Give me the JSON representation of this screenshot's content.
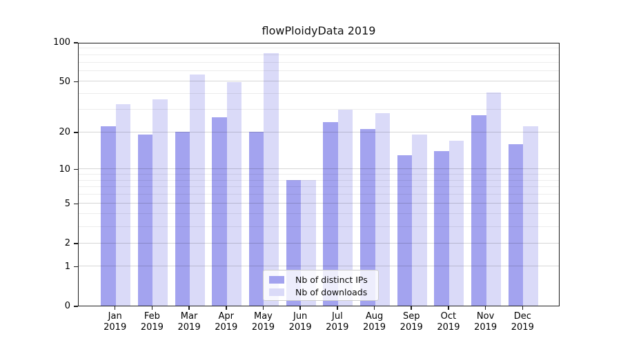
{
  "title": "flowPloidyData 2019",
  "chart_data": {
    "type": "bar",
    "title": "flowPloidyData 2019",
    "categories": [
      "Jan",
      "Feb",
      "Mar",
      "Apr",
      "May",
      "Jun",
      "Jul",
      "Aug",
      "Sep",
      "Oct",
      "Nov",
      "Dec"
    ],
    "category_year": "2019",
    "series": [
      {
        "name": "Nb of distinct IPs",
        "color": "#a3a3ef",
        "values": [
          22,
          19,
          20,
          26,
          20,
          8,
          24,
          21,
          13,
          14,
          27,
          16
        ]
      },
      {
        "name": "Nb of downloads",
        "color": "#dadaf8",
        "values": [
          33,
          36,
          56,
          49,
          82,
          8,
          30,
          28,
          19,
          17,
          41,
          22
        ]
      }
    ],
    "xlabel": "",
    "ylabel": "",
    "yscale": "log1p",
    "ylim": [
      0,
      100
    ],
    "yticks_major": [
      0,
      1,
      2,
      5,
      10,
      20,
      50,
      100
    ],
    "yticks_minor": [
      3,
      4,
      6,
      7,
      8,
      9,
      30,
      40,
      60,
      70,
      80,
      90
    ],
    "grid": true,
    "legend_position": "lower center"
  }
}
